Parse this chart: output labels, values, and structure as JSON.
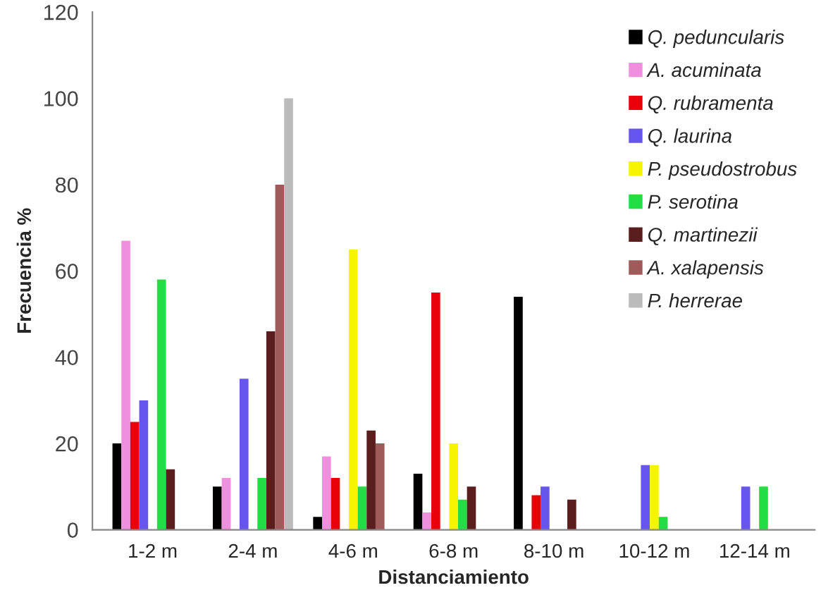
{
  "chart_data": {
    "type": "bar",
    "xlabel": "Distanciamiento",
    "ylabel": "Frecuencia %",
    "categories": [
      "1-2 m",
      "2-4 m",
      "4-6 m",
      "6-8 m",
      "8-10 m",
      "10-12 m",
      "12-14 m"
    ],
    "series": [
      {
        "name": "Q. peduncularis",
        "color": "#000000",
        "values": [
          20,
          10,
          3,
          13,
          54,
          null,
          null
        ]
      },
      {
        "name": "A. acuminata",
        "color": "#ee90dd",
        "values": [
          67,
          12,
          17,
          4,
          null,
          null,
          null
        ]
      },
      {
        "name": "Q. rubramenta",
        "color": "#e8000b",
        "values": [
          25,
          null,
          12,
          55,
          8,
          null,
          null
        ]
      },
      {
        "name": "Q. laurina",
        "color": "#6655ee",
        "values": [
          30,
          35,
          null,
          null,
          10,
          15,
          10
        ]
      },
      {
        "name": "P. pseudostrobus",
        "color": "#f5f500",
        "values": [
          null,
          null,
          65,
          20,
          null,
          15,
          null
        ]
      },
      {
        "name": "P. serotina",
        "color": "#22dd44",
        "values": [
          58,
          12,
          10,
          7,
          null,
          3,
          10
        ]
      },
      {
        "name": "Q. martinezii",
        "color": "#5a1e1e",
        "values": [
          14,
          46,
          23,
          10,
          7,
          null,
          null
        ]
      },
      {
        "name": "A. xalapensis",
        "color": "#a05a5a",
        "values": [
          null,
          80,
          20,
          null,
          null,
          null,
          null
        ]
      },
      {
        "name": "P. herrerae",
        "color": "#bbbbbb",
        "values": [
          null,
          100,
          null,
          null,
          null,
          null,
          null
        ]
      }
    ],
    "ylim": [
      0,
      120
    ],
    "yticks": [
      0,
      20,
      40,
      60,
      80,
      100,
      120
    ],
    "grid": false,
    "legend": "top right"
  }
}
